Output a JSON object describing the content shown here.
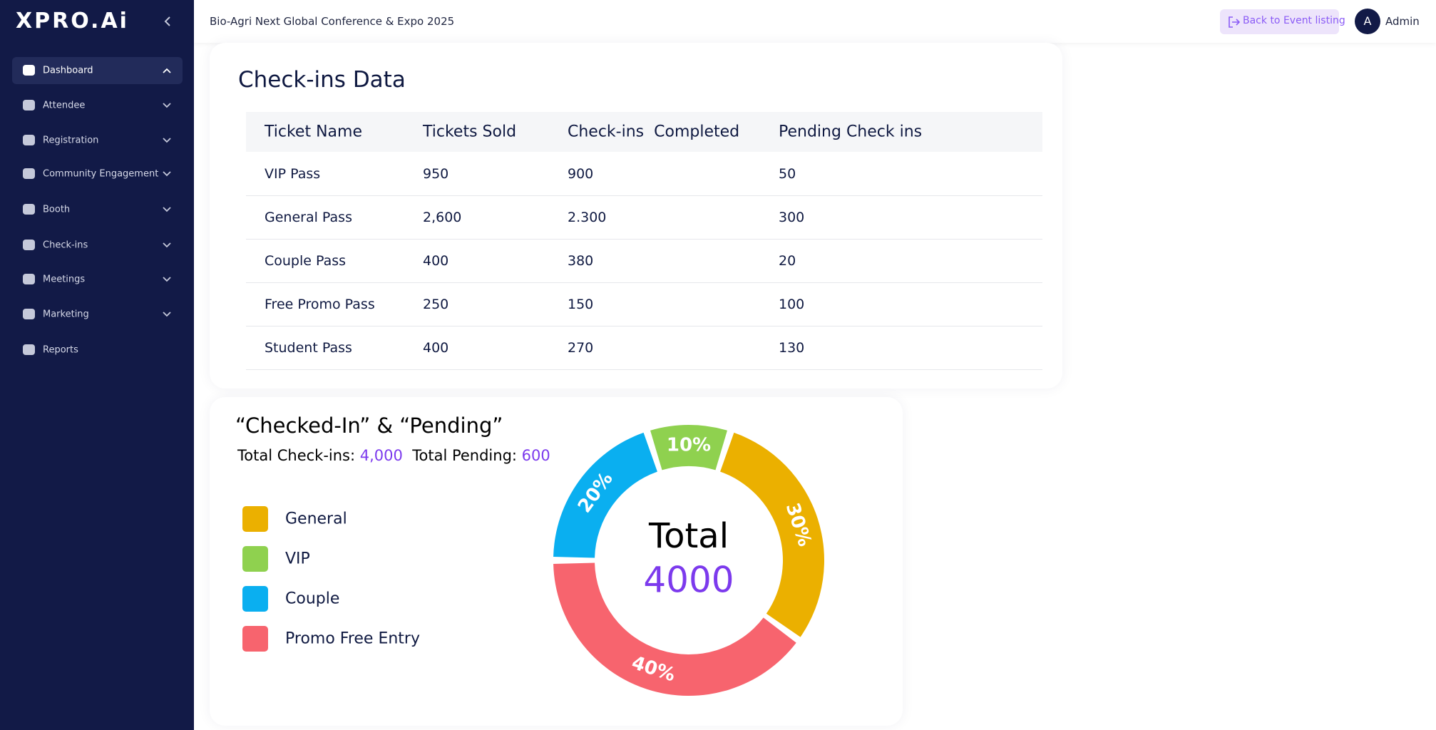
{
  "sidebar": {
    "logo": "XPRO.Ai",
    "menu": [
      "Dashboard",
      "Attendee",
      "Registration",
      "Community Engagement",
      "Booth",
      "Check-ins",
      "Meetings",
      "Marketing",
      "Reports"
    ]
  },
  "header": {
    "title": "Bio-Agri Next Global Conference & Expo 2025",
    "button": "Back to Event listing",
    "avatar": "A",
    "user": "Admin"
  },
  "table": {
    "title": "Check-ins Data",
    "columns": [
      "Ticket Name",
      "Tickets Sold",
      "Check-ins  Completed",
      "Pending Check ins"
    ],
    "rows": [
      [
        "VIP Pass",
        "950",
        "900",
        "50"
      ],
      [
        "General Pass",
        "2,600",
        "2.300",
        "300"
      ],
      [
        "Couple Pass",
        "400",
        "380",
        "20"
      ],
      [
        "Free Promo Pass",
        "250",
        "150",
        "100"
      ],
      [
        "Student Pass",
        "400",
        "270",
        "130"
      ]
    ]
  },
  "chart_data": {
    "type": "pie",
    "title": "“Checked-In” & “Pending”",
    "summary": {
      "checkins_label": "Total Check-ins:",
      "checkins": "4,000",
      "pending_label": "Total Pending:",
      "pending": 600
    },
    "categories": [
      "General",
      "VIP",
      "Couple",
      "Promo Free Entry"
    ],
    "values": [
      30,
      10,
      20,
      40
    ],
    "value_labels": [
      "30%",
      "10%",
      "20%",
      "40%"
    ],
    "colors": [
      "#ebb000",
      "#8fd14f",
      "#0aaff0",
      "#f7646e"
    ],
    "center_label": "Total",
    "center_value": 4000
  }
}
